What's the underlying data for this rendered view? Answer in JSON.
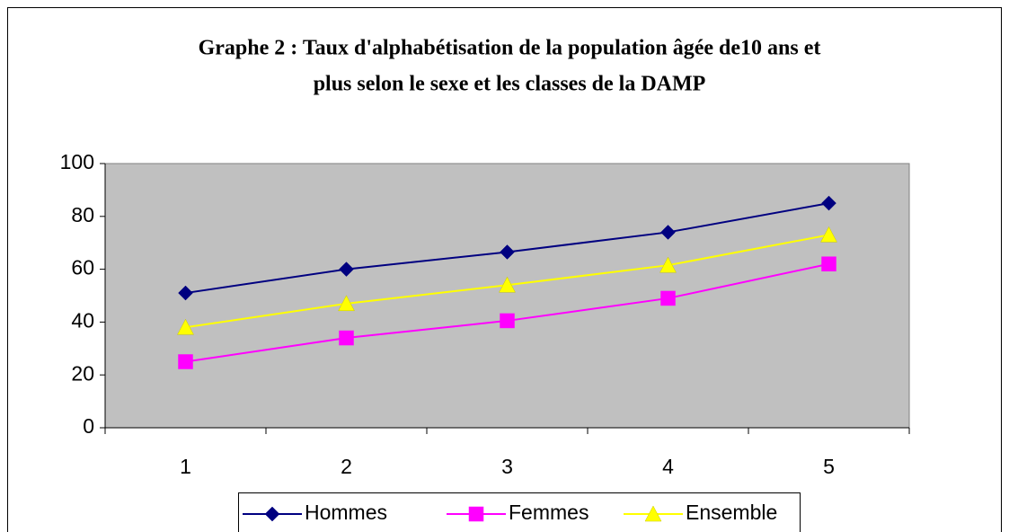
{
  "chart_data": {
    "type": "line",
    "title": [
      "Graphe  2 : Taux d'alphabétisation de la population âgée de10 ans et",
      "plus selon le sexe et les classes de la DAMP"
    ],
    "categories": [
      "1",
      "2",
      "3",
      "4",
      "5"
    ],
    "series": [
      {
        "name": "Hommes",
        "color": "#000080",
        "marker": "diamond",
        "values": [
          51,
          60,
          66.5,
          74,
          85
        ]
      },
      {
        "name": "Femmes",
        "color": "#ff00ff",
        "marker": "square",
        "values": [
          25,
          34,
          40.5,
          49,
          62
        ]
      },
      {
        "name": "Ensemble",
        "color": "#ffff00",
        "marker": "triangle",
        "values": [
          38,
          47,
          54,
          61.5,
          73
        ]
      }
    ],
    "ylim": [
      0,
      100
    ],
    "yticks": [
      0,
      20,
      40,
      60,
      80,
      100
    ],
    "grid": false,
    "legend": "bottom",
    "plot_background": "#c0c0c0"
  }
}
